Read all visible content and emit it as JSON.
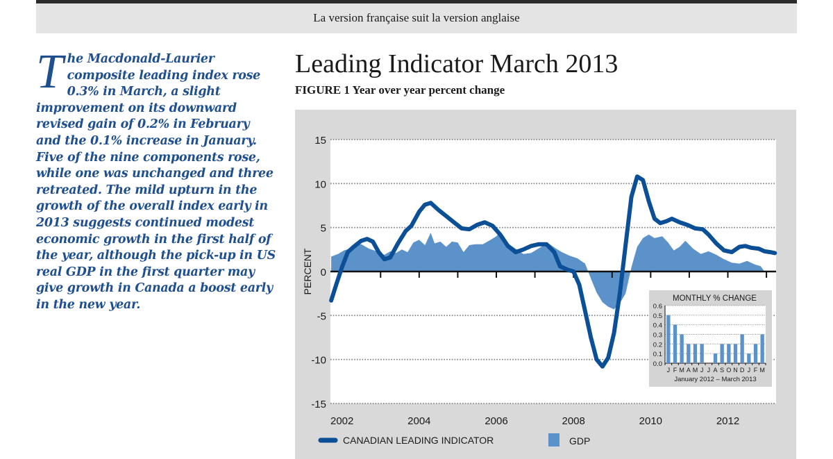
{
  "banner": {
    "text": "La version française suit la version anglaise"
  },
  "intro": {
    "dropcap": "T",
    "text": "he Macdonald-Laurier composite leading index rose 0.3% in March, a slight improvement on its downward revised gain of 0.2% in February and the 0.1% increase in January. Five of the nine components rose, while one was unchanged and three retreated. The mild upturn in the growth of the overall index early in 2013 suggests continued modest economic growth in the first half of the year, although the pick-up in US real GDP in the first quarter may give growth in Canada a boost early in the new year."
  },
  "header": {
    "title": "Leading Indicator March 2013",
    "subtitle": "FIGURE 1 Year over year percent change"
  },
  "colors": {
    "line": "#0b4f96",
    "area": "#5b92c9",
    "panel": "#d9d9d9"
  },
  "chart_data": [
    {
      "type": "line",
      "title": "Leading Indicator March 2013",
      "subtitle": "FIGURE 1 Year over year percent change",
      "xlabel": "",
      "ylabel": "PERCENT",
      "xlim": [
        2001.7,
        2013.25
      ],
      "ylim": [
        -15,
        15
      ],
      "yticks": [
        -15,
        -10,
        -5,
        0,
        5,
        10,
        15
      ],
      "xtick_labels": [
        "2002",
        "2004",
        "2006",
        "2008",
        "2010",
        "2012"
      ],
      "xtick_values": [
        2002,
        2004,
        2006,
        2008,
        2010,
        2012
      ],
      "minor_ticks": [
        2003,
        2004,
        2005,
        2006,
        2007,
        2008,
        2009,
        2010,
        2011,
        2012,
        2013
      ],
      "grid": true,
      "legend": {
        "position": "bottom-left",
        "entries": [
          "CANADIAN LEADING INDICATOR",
          "GDP"
        ]
      },
      "series": [
        {
          "name": "CANADIAN LEADING INDICATOR",
          "kind": "line",
          "x": [
            2001.72,
            2001.85,
            2002.0,
            2002.15,
            2002.3,
            2002.5,
            2002.65,
            2002.8,
            2002.95,
            2003.1,
            2003.25,
            2003.45,
            2003.65,
            2003.8,
            2004.0,
            2004.15,
            2004.3,
            2004.5,
            2004.7,
            2004.9,
            2005.1,
            2005.3,
            2005.5,
            2005.7,
            2005.9,
            2006.1,
            2006.3,
            2006.5,
            2006.7,
            2006.9,
            2007.1,
            2007.3,
            2007.5,
            2007.65,
            2007.85,
            2008.0,
            2008.15,
            2008.3,
            2008.45,
            2008.6,
            2008.75,
            2008.9,
            2009.05,
            2009.2,
            2009.35,
            2009.5,
            2009.65,
            2009.8,
            2009.95,
            2010.1,
            2010.25,
            2010.4,
            2010.55,
            2010.75,
            2010.95,
            2011.15,
            2011.35,
            2011.5,
            2011.7,
            2011.9,
            2012.1,
            2012.3,
            2012.45,
            2012.6,
            2012.8,
            2012.95,
            2013.1,
            2013.22
          ],
          "values": [
            -3.3,
            -1.5,
            0.5,
            2.2,
            2.8,
            3.5,
            3.7,
            3.4,
            2.2,
            1.4,
            1.6,
            3.2,
            4.6,
            5.2,
            6.8,
            7.6,
            7.8,
            7.0,
            6.3,
            5.6,
            4.9,
            4.8,
            5.3,
            5.6,
            5.2,
            4.2,
            2.9,
            2.2,
            2.5,
            2.9,
            3.1,
            3.1,
            2.2,
            0.6,
            0.2,
            0.0,
            -1.5,
            -4.5,
            -7.5,
            -10.0,
            -10.8,
            -9.8,
            -7.0,
            -2.5,
            3.0,
            8.5,
            10.8,
            10.4,
            8.0,
            6.0,
            5.5,
            5.7,
            6.0,
            5.6,
            5.3,
            4.9,
            4.8,
            4.2,
            3.2,
            2.4,
            2.2,
            2.8,
            2.9,
            2.7,
            2.6,
            2.3,
            2.2,
            2.1
          ]
        },
        {
          "name": "GDP",
          "kind": "area",
          "x": [
            2001.72,
            2001.9,
            2002.05,
            2002.2,
            2002.35,
            2002.5,
            2002.7,
            2002.9,
            2003.1,
            2003.25,
            2003.4,
            2003.55,
            2003.7,
            2003.85,
            2004.0,
            2004.15,
            2004.3,
            2004.4,
            2004.55,
            2004.7,
            2004.85,
            2005.0,
            2005.15,
            2005.3,
            2005.45,
            2005.65,
            2005.85,
            2006.0,
            2006.1,
            2006.3,
            2006.5,
            2006.7,
            2006.9,
            2007.05,
            2007.2,
            2007.35,
            2007.55,
            2007.7,
            2007.9,
            2008.1,
            2008.3,
            2008.45,
            2008.6,
            2008.75,
            2008.9,
            2009.05,
            2009.2,
            2009.35,
            2009.5,
            2009.65,
            2009.8,
            2009.95,
            2010.1,
            2010.3,
            2010.45,
            2010.6,
            2010.75,
            2010.9,
            2011.1,
            2011.3,
            2011.5,
            2011.7,
            2011.9,
            2012.1,
            2012.3,
            2012.5,
            2012.7,
            2012.85,
            2012.95
          ],
          "values": [
            1.7,
            2.0,
            2.4,
            2.6,
            3.0,
            3.1,
            2.6,
            2.3,
            1.9,
            2.3,
            2.1,
            2.5,
            2.2,
            3.3,
            3.6,
            3.0,
            4.4,
            3.2,
            3.4,
            2.8,
            3.4,
            3.3,
            2.2,
            3.0,
            3.1,
            3.1,
            3.6,
            4.0,
            4.5,
            3.2,
            2.6,
            2.0,
            2.1,
            2.5,
            2.9,
            3.2,
            2.6,
            2.2,
            1.8,
            1.5,
            0.9,
            -0.8,
            -2.4,
            -3.5,
            -4.0,
            -4.3,
            -3.6,
            -2.5,
            0.5,
            2.8,
            3.8,
            4.2,
            3.8,
            4.0,
            3.3,
            2.4,
            2.8,
            3.5,
            2.6,
            2.0,
            2.3,
            1.9,
            1.4,
            1.0,
            0.9,
            1.2,
            0.8,
            0.6,
            0.0
          ]
        }
      ]
    },
    {
      "type": "bar",
      "title": "MONTHLY % CHANGE",
      "xlabel": "January 2012 – March 2013",
      "ylabel": "",
      "ylim": [
        0,
        0.6
      ],
      "yticks": [
        "0.0",
        "0.1",
        "0.2",
        "0.3",
        "0.4",
        "0.5",
        "0.6"
      ],
      "ytick_values": [
        0,
        0.1,
        0.2,
        0.3,
        0.4,
        0.5,
        0.6
      ],
      "categories": [
        "J",
        "F",
        "M",
        "A",
        "M",
        "J",
        "J",
        "A",
        "S",
        "O",
        "N",
        "D",
        "J",
        "F",
        "M"
      ],
      "values": [
        0.5,
        0.4,
        0.3,
        0.2,
        0.2,
        0.2,
        0.0,
        0.1,
        0.2,
        0.2,
        0.2,
        0.3,
        0.1,
        0.2,
        0.3
      ],
      "grid": true
    }
  ]
}
